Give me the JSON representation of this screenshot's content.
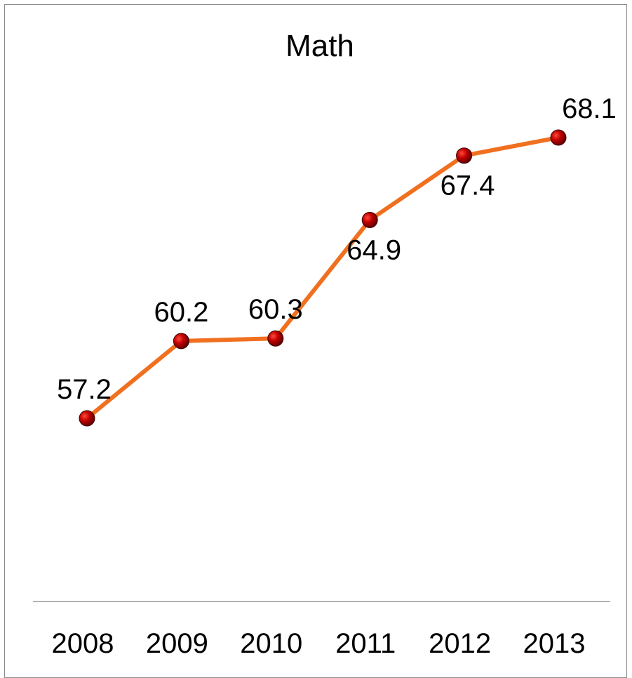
{
  "chart_data": {
    "type": "line",
    "title": "Math",
    "categories": [
      "2008",
      "2009",
      "2010",
      "2011",
      "2012",
      "2013"
    ],
    "series": [
      {
        "values": [
          57.2,
          60.2,
          60.3,
          64.9,
          67.4,
          68.1
        ]
      }
    ],
    "data_labels": [
      "57.2",
      "60.2",
      "60.3",
      "64.9",
      "67.4",
      "68.1"
    ],
    "xlabel": "",
    "ylabel": "",
    "ylim": [
      45,
      73
    ],
    "grid": false,
    "legend": "none",
    "colors": {
      "line": "#f07020",
      "marker": "#c00000",
      "axis": "#999999"
    }
  }
}
